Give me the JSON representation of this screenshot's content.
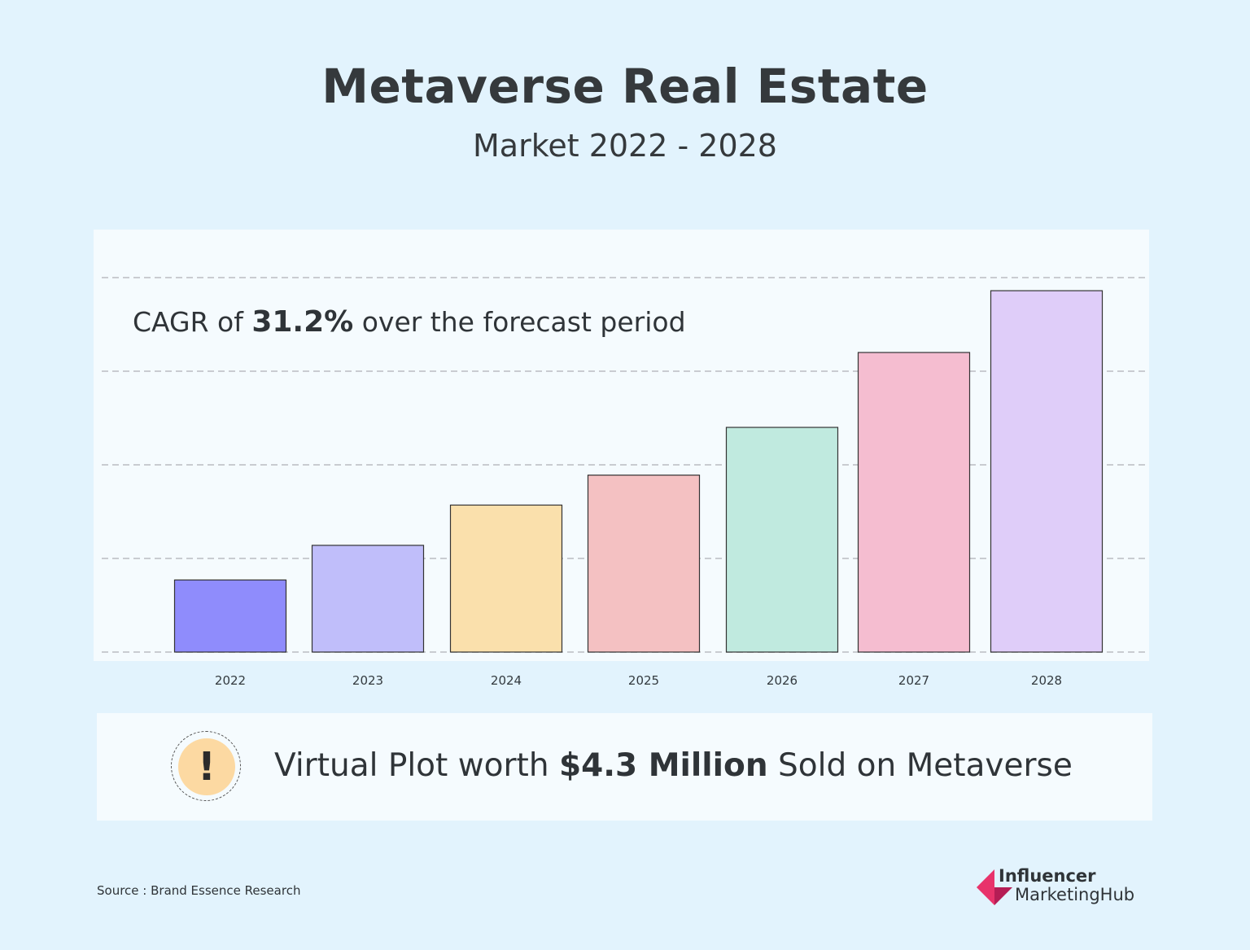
{
  "header": {
    "title": "Metaverse Real Estate",
    "subtitle": "Market 2022 - 2028"
  },
  "annotation": {
    "prefix": "CAGR of ",
    "value": "31.2%",
    "suffix": " over the forecast period"
  },
  "callout": {
    "icon": "exclamation-icon",
    "prefix": "Virtual Plot worth ",
    "amount": "$4.3 Million",
    "suffix": " Sold on Metaverse"
  },
  "source": "Source : Brand Essence Research",
  "logo": {
    "line1": "Influencer",
    "line2": "MarketingHub",
    "colors": [
      "#e8336b",
      "#b51d55"
    ]
  },
  "chart_data": {
    "type": "bar",
    "title": "Metaverse Real Estate",
    "subtitle": "Market 2022 - 2028",
    "categories": [
      "2022",
      "2023",
      "2024",
      "2025",
      "2026",
      "2027",
      "2028"
    ],
    "values": [
      0.77,
      1.14,
      1.57,
      1.89,
      2.4,
      3.2,
      3.86
    ],
    "colors": [
      "#8f8cfc",
      "#c0befa",
      "#fae0ac",
      "#f4c1c2",
      "#c0eadf",
      "#f5bdd0",
      "#dfcdf9"
    ],
    "ylim": [
      0,
      4.0
    ],
    "gridlines": [
      0,
      1,
      2,
      3,
      4
    ],
    "grid": true,
    "xlabel": "",
    "ylabel": "",
    "legend": "none"
  }
}
